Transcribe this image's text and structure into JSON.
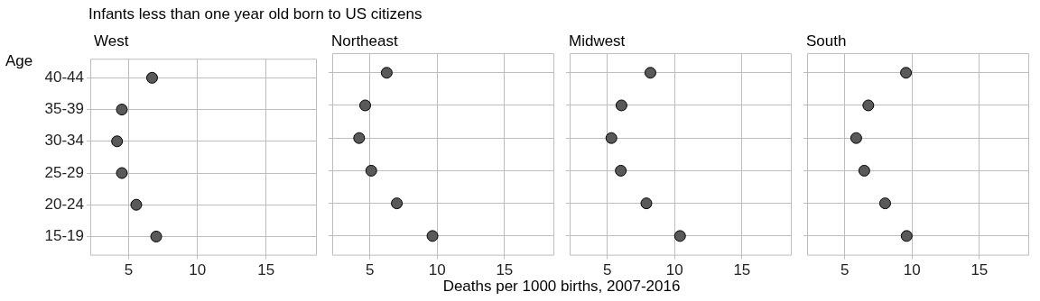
{
  "chart_data": [
    {
      "type": "scatter",
      "orientation": "horizontal",
      "title": "Infants less than one year old born to US citizens",
      "subtitle": "West",
      "ylabel": "Age",
      "categories": [
        "40-44",
        "35-39",
        "30-34",
        "25-29",
        "20-24",
        "15-19"
      ],
      "values": [
        6.7,
        4.5,
        4.15,
        4.5,
        5.55,
        7.0
      ],
      "color": "#595959",
      "marker": "circle",
      "xlim": [
        2.2,
        18.7
      ],
      "xticks": [
        5,
        10,
        15
      ],
      "grid": true
    },
    {
      "type": "scatter",
      "orientation": "horizontal",
      "subtitle": "Northeast",
      "categories": [
        null,
        null,
        null,
        null,
        null,
        null
      ],
      "values": [
        6.25,
        4.65,
        4.2,
        5.1,
        7.0,
        9.65
      ],
      "color": "#595959",
      "marker": "circle",
      "xlim": [
        2.2,
        18.7
      ],
      "xticks": [
        5,
        10,
        15
      ],
      "grid": true,
      "tick_labels": "x"
    },
    {
      "type": "scatter",
      "orientation": "horizontal",
      "subtitle": "Midwest",
      "xlabel": "Deaths per 1000 births, 2007-2016",
      "categories": [
        null,
        null,
        null,
        null,
        null,
        null
      ],
      "values": [
        8.2,
        6.05,
        5.3,
        6.0,
        7.9,
        10.4
      ],
      "color": "#595959",
      "marker": "circle",
      "xlim": [
        2.2,
        18.7
      ],
      "xticks": [
        5,
        10,
        15
      ],
      "grid": true,
      "tick_labels": "x"
    },
    {
      "type": "scatter",
      "orientation": "horizontal",
      "subtitle": "South",
      "categories": [
        null,
        null,
        null,
        null,
        null,
        null
      ],
      "values": [
        9.55,
        6.75,
        5.85,
        6.45,
        8.0,
        9.6
      ],
      "color": "#595959",
      "marker": "circle",
      "xlim": [
        2.2,
        18.7
      ],
      "xticks": [
        5,
        10,
        15
      ],
      "grid": true,
      "tick_labels": "x"
    }
  ]
}
